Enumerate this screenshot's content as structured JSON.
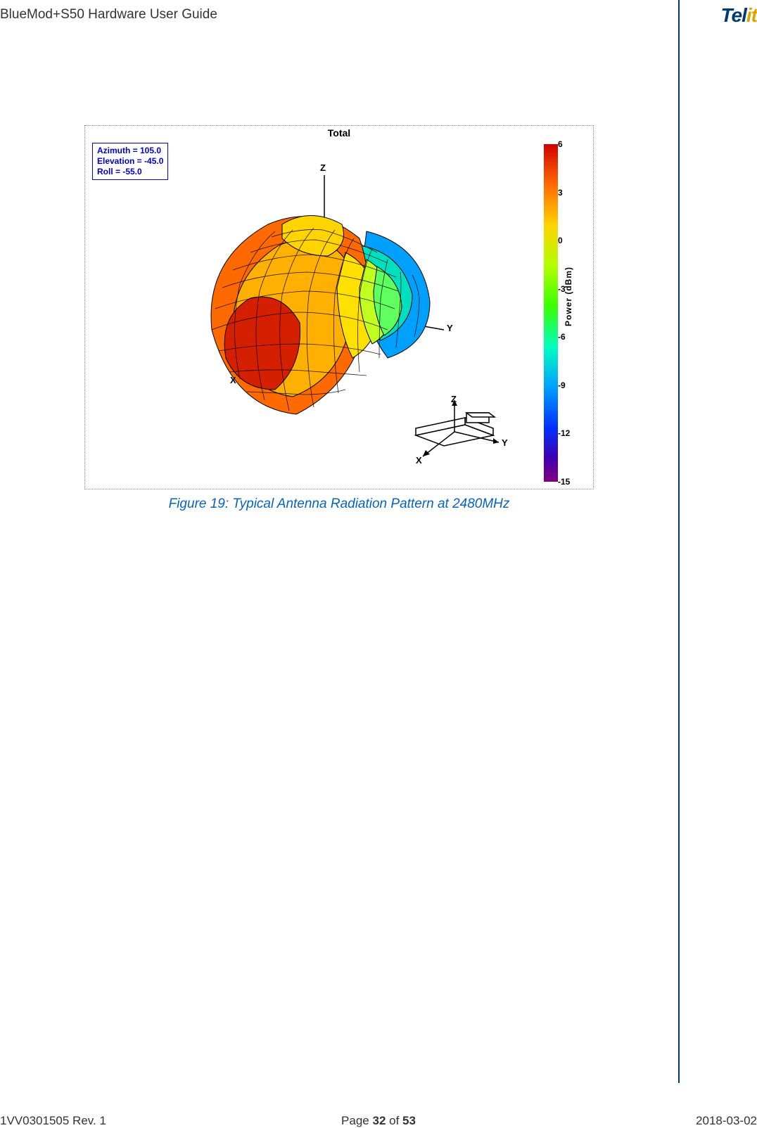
{
  "header": {
    "title": "BlueMod+S50 Hardware User Guide",
    "logo_part1": "Tel",
    "logo_part2": "it"
  },
  "figure": {
    "chart_title": "Total",
    "info": {
      "azimuth_label": "Azimuth = 105.0",
      "elevation_label": "Elevation = -45.0",
      "roll_label": "Roll = -55.0"
    },
    "axes": {
      "x": "X",
      "y": "Y",
      "z": "Z"
    },
    "inset_axes": {
      "x": "X",
      "y": "Y",
      "z": "Z"
    },
    "colorbar": {
      "label": "Power (dBm)",
      "ticks": [
        "6",
        "3",
        "0",
        "-3",
        "-6",
        "-9",
        "-12",
        "-15"
      ],
      "gradient_stops": [
        {
          "pct": 0,
          "color": "#d40000"
        },
        {
          "pct": 12,
          "color": "#ff6a00"
        },
        {
          "pct": 24,
          "color": "#ffd400"
        },
        {
          "pct": 36,
          "color": "#b3ff00"
        },
        {
          "pct": 48,
          "color": "#39ff00"
        },
        {
          "pct": 60,
          "color": "#00ffc0"
        },
        {
          "pct": 72,
          "color": "#00a0ff"
        },
        {
          "pct": 84,
          "color": "#0030ff"
        },
        {
          "pct": 93,
          "color": "#4000b0"
        },
        {
          "pct": 100,
          "color": "#800080"
        }
      ]
    },
    "surface": {
      "type": "3d-radiation-pattern",
      "mesh_line_color": "#000000",
      "mesh_line_width": 1,
      "axis_line_color": "#000000",
      "face_colors_sample": [
        "#d42000",
        "#ff6a00",
        "#ffb000",
        "#ffe000",
        "#c0ff20",
        "#60ff60",
        "#00e0c0",
        "#0090ff"
      ],
      "background_color": "#ffffff"
    },
    "caption": "Figure 19: Typical Antenna Radiation Pattern at 2480MHz"
  },
  "footer": {
    "left": "1VV0301505 Rev. 1",
    "center_prefix": "Page ",
    "center_page": "32",
    "center_of": " of ",
    "center_total": "53",
    "right": "2018-03-02"
  },
  "style": {
    "caption_color": "#0563c1",
    "vline_color": "#003a6f"
  }
}
